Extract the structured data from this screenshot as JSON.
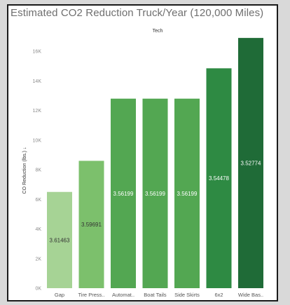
{
  "chart_data": {
    "type": "bar",
    "title": "Estimated CO2 Reduction Truck/Year (120,000 Miles)",
    "column_header": "Tech",
    "ylabel": "CO Reduction (lbs.) ↓",
    "ylim": [
      0,
      17000
    ],
    "yticks": [
      0,
      2000,
      4000,
      6000,
      8000,
      10000,
      12000,
      14000,
      16000
    ],
    "ytick_labels": [
      "0K",
      "2K",
      "4K",
      "6K",
      "8K",
      "10K",
      "12K",
      "14K",
      "16K"
    ],
    "grid": false,
    "categories": [
      "Gap",
      "Tire Press..",
      "Automat..",
      "Boat Tails",
      "Side Skirts",
      "6x2",
      "Wide Bas.."
    ],
    "values": [
      6500,
      8600,
      12800,
      12800,
      12800,
      14850,
      16900
    ],
    "bar_labels": [
      "3.61463",
      "3.59691",
      "3.56199",
      "3.56199",
      "3.56199",
      "3.54478",
      "3.52774"
    ],
    "bar_colors": [
      "#a6d395",
      "#7cc06c",
      "#53a752",
      "#53a752",
      "#53a752",
      "#2e8a43",
      "#1f6b37"
    ],
    "label_colors": [
      "#333333",
      "#333333",
      "#ffffff",
      "#ffffff",
      "#ffffff",
      "#ffffff",
      "#ffffff"
    ]
  }
}
